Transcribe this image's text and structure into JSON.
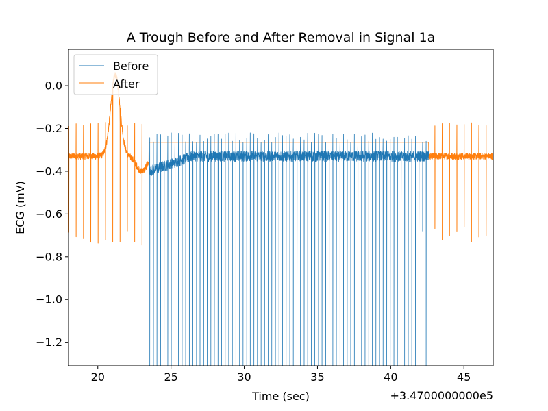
{
  "chart_data": {
    "type": "line",
    "title": "A Trough Before and After Removal in Signal 1a",
    "xlabel": "Time (sec)",
    "ylabel": "ECG (mV)",
    "x_offset_label": "+3.4700000000e5",
    "xlim": [
      18.0,
      47.0
    ],
    "ylim": [
      -1.31,
      0.17
    ],
    "x_ticks": [
      20,
      25,
      30,
      35,
      40,
      45
    ],
    "x_tick_labels": [
      "20",
      "25",
      "30",
      "35",
      "40",
      "45"
    ],
    "y_ticks": [
      0.0,
      -0.2,
      -0.4,
      -0.6,
      -0.8,
      -1.0,
      -1.2
    ],
    "y_tick_labels": [
      "0.0",
      "−0.2",
      "−0.4",
      "−0.6",
      "−0.8",
      "−1.0",
      "−1.2"
    ],
    "grid": false,
    "legend_position": "top-left",
    "series": [
      {
        "name": "Before",
        "color": "#1f77b4",
        "baseline": -0.35,
        "trough_start": 23.5,
        "trough_end": 42.6,
        "spike_peak": -0.22,
        "spike_trough_min": -1.31
      },
      {
        "name": "After",
        "color": "#ff7f0e",
        "baseline": -0.33,
        "plateau_value": -0.265,
        "plateau_start": 23.5,
        "plateau_end": 42.6,
        "spike_peak": -0.17,
        "spike_trough": -0.7,
        "bump_center": 21.2,
        "bump_peak": 0.05
      }
    ]
  }
}
